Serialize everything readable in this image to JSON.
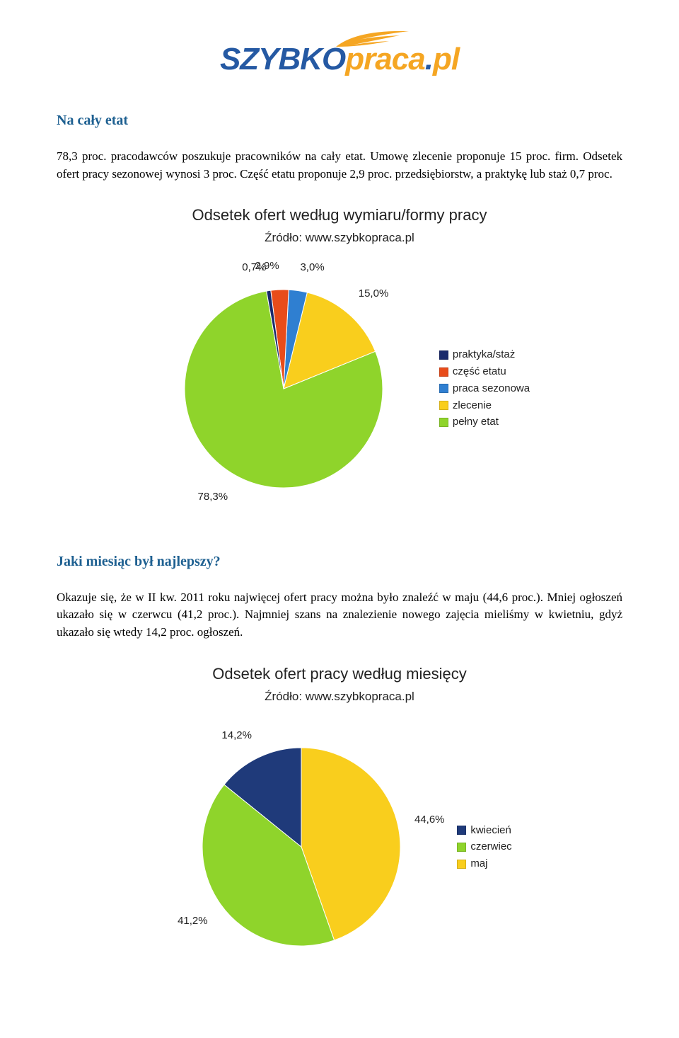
{
  "logo": {
    "part1": "SZYBKO",
    "part2_a": "praca",
    "part2_dot": ".",
    "part2_b": "pl",
    "wing_color": "#f5a623",
    "color1": "#2559a3",
    "color2": "#f5a623"
  },
  "section1": {
    "title": "Na cały etat",
    "paragraph": "78,3 proc. pracodawców poszukuje pracowników na cały etat. Umowę zlecenie proponuje 15 proc. firm. Odsetek ofert pracy sezonowej wynosi 3 proc. Część etatu proponuje 2,9 proc. przedsiębiorstw, a praktykę lub staż 0,7 proc."
  },
  "chart1": {
    "type": "pie",
    "title": "Odsetek ofert według wymiaru/formy pracy",
    "subtitle": "Źródło: www.szybkopraca.pl",
    "radius": 140,
    "svg_size": 380,
    "start_angle_deg": 100,
    "direction": "counterclockwise",
    "background_color": "#ffffff",
    "slices": [
      {
        "label": "pełny etat",
        "value": 78.3,
        "value_label": "78,3%",
        "color": "#8fd42b"
      },
      {
        "label": "zlecenie",
        "value": 15.0,
        "value_label": "15,0%",
        "color": "#f9ce1d"
      },
      {
        "label": "praca sezonowa",
        "value": 3.0,
        "value_label": "3,0%",
        "color": "#2f7fd1"
      },
      {
        "label": "część etatu",
        "value": 2.9,
        "value_label": "2,9%",
        "color": "#e84c1a"
      },
      {
        "label": "praktyka/staż",
        "value": 0.7,
        "value_label": "0,7%",
        "color": "#1a2a6c"
      }
    ],
    "legend_order": [
      "praktyka/staż",
      "część etatu",
      "praca sezonowa",
      "zlecenie",
      "pełny etat"
    ],
    "legend_colors": {
      "praktyka/staż": "#1a2a6c",
      "część etatu": "#e84c1a",
      "praca sezonowa": "#2f7fd1",
      "zlecenie": "#f9ce1d",
      "pełny etat": "#8fd42b"
    },
    "label_fontsize": 15,
    "title_fontsize": 22,
    "subtitle_fontsize": 17
  },
  "section2": {
    "title": "Jaki miesiąc był najlepszy?",
    "paragraph": "Okazuje się, że w II kw. 2011 roku najwięcej ofert pracy można było znaleźć w maju (44,6 proc.). Mniej ogłoszeń ukazało się w czerwcu (41,2 proc.). Najmniej szans na znalezienie nowego zajęcia mieliśmy w kwietniu, gdyż ukazało się wtedy 14,2 proc. ogłoszeń."
  },
  "chart2": {
    "type": "pie",
    "title": "Odsetek ofert pracy według miesięcy",
    "subtitle": "Źródło: www.szybkopraca.pl",
    "radius": 140,
    "svg_size": 380,
    "start_angle_deg": 90,
    "direction": "clockwise",
    "background_color": "#ffffff",
    "slices": [
      {
        "label": "maj",
        "value": 44.6,
        "value_label": "44,6%",
        "color": "#f9ce1d"
      },
      {
        "label": "czerwiec",
        "value": 41.2,
        "value_label": "41,2%",
        "color": "#8fd42b"
      },
      {
        "label": "kwiecień",
        "value": 14.2,
        "value_label": "14,2%",
        "color": "#1f3a7a"
      }
    ],
    "legend_order": [
      "kwiecień",
      "czerwiec",
      "maj"
    ],
    "legend_colors": {
      "kwiecień": "#1f3a7a",
      "czerwiec": "#8fd42b",
      "maj": "#f9ce1d"
    },
    "label_fontsize": 15,
    "title_fontsize": 22,
    "subtitle_fontsize": 17
  }
}
